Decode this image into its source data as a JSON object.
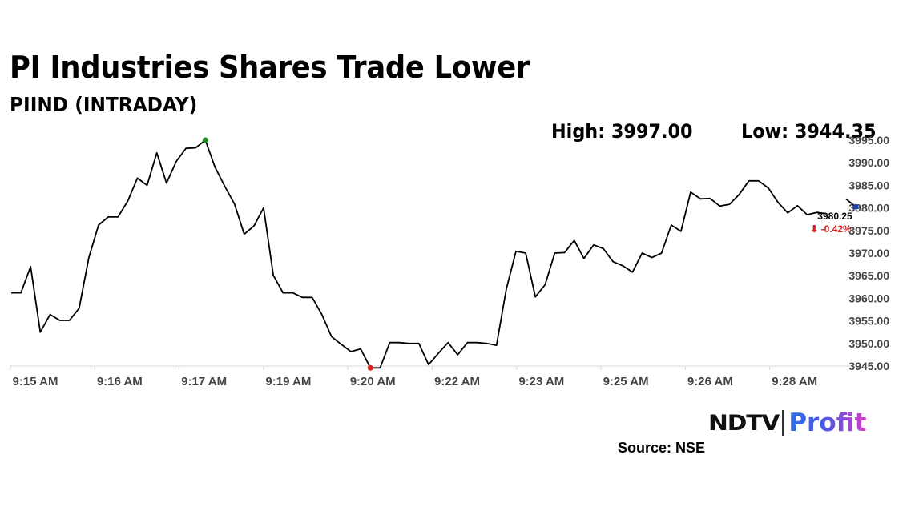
{
  "header": {
    "title": "PI Industries Shares Trade Lower",
    "subtitle": "PIIND (INTRADAY)"
  },
  "stats": {
    "high_label": "High: 3997.00",
    "low_label": "Low: 3944.35"
  },
  "footer": {
    "brand_left": "NDTV",
    "brand_right": "Profit",
    "source": "Source: NSE"
  },
  "colors": {
    "line": "#000000",
    "high_marker": "#1a8a1a",
    "low_marker": "#e02020",
    "last_marker": "#1a3fb0",
    "change_negative": "#e02020"
  },
  "chart_data": {
    "type": "line",
    "series": [
      {
        "values": [
          3961.2,
          3961.2,
          3967.0,
          3952.5,
          3956.4,
          3955.1,
          3955.1,
          3957.8,
          3969.0,
          3976.2,
          3978.0,
          3978.0,
          3981.5,
          3986.6,
          3985.0,
          3992.2,
          3985.5,
          3990.3,
          3993.2,
          3993.3,
          3995.0,
          3989.0,
          3984.8,
          3980.9,
          3974.2,
          3976.0,
          3980.0,
          3965.1,
          3961.2,
          3961.2,
          3960.2,
          3960.2,
          3956.4,
          3951.5,
          3949.8,
          3948.2,
          3948.8,
          3944.6,
          3944.6,
          3950.2,
          3950.2,
          3950.0,
          3950.0,
          3945.3,
          3947.8,
          3950.2,
          3947.5,
          3950.2,
          3950.2,
          3950.0,
          3949.6,
          3962.0,
          3970.4,
          3970.0,
          3960.3,
          3963.0,
          3970.0,
          3970.1,
          3972.8,
          3968.8,
          3971.8,
          3971.0,
          3968.1,
          3967.2,
          3965.8,
          3970.0,
          3969.0,
          3970.0,
          3976.2,
          3974.8,
          3983.5,
          3982.0,
          3982.1,
          3980.4,
          3980.8,
          3983.0,
          3986.0,
          3986.0,
          3984.4,
          3981.2,
          3978.9,
          3980.5,
          3978.5,
          3979.0,
          3978.7,
          null,
          3982.0,
          3980.25
        ]
      }
    ],
    "x_ticks": [
      "9:15 AM",
      "9:16 AM",
      "9:17 AM",
      "9:19 AM",
      "9:20 AM",
      "9:22 AM",
      "9:23 AM",
      "9:25 AM",
      "9:26 AM",
      "9:28 AM"
    ],
    "y_ticks": [
      "3945.00",
      "3950.00",
      "3955.00",
      "3960.00",
      "3965.00",
      "3970.00",
      "3975.00",
      "3980.00",
      "3985.00",
      "3990.00",
      "3995.00"
    ],
    "ylim": [
      3945,
      3995
    ],
    "high_index": 20,
    "low_index": 37,
    "last_price": "3980.25",
    "change": "⬇ -0.42%",
    "grid": false
  }
}
